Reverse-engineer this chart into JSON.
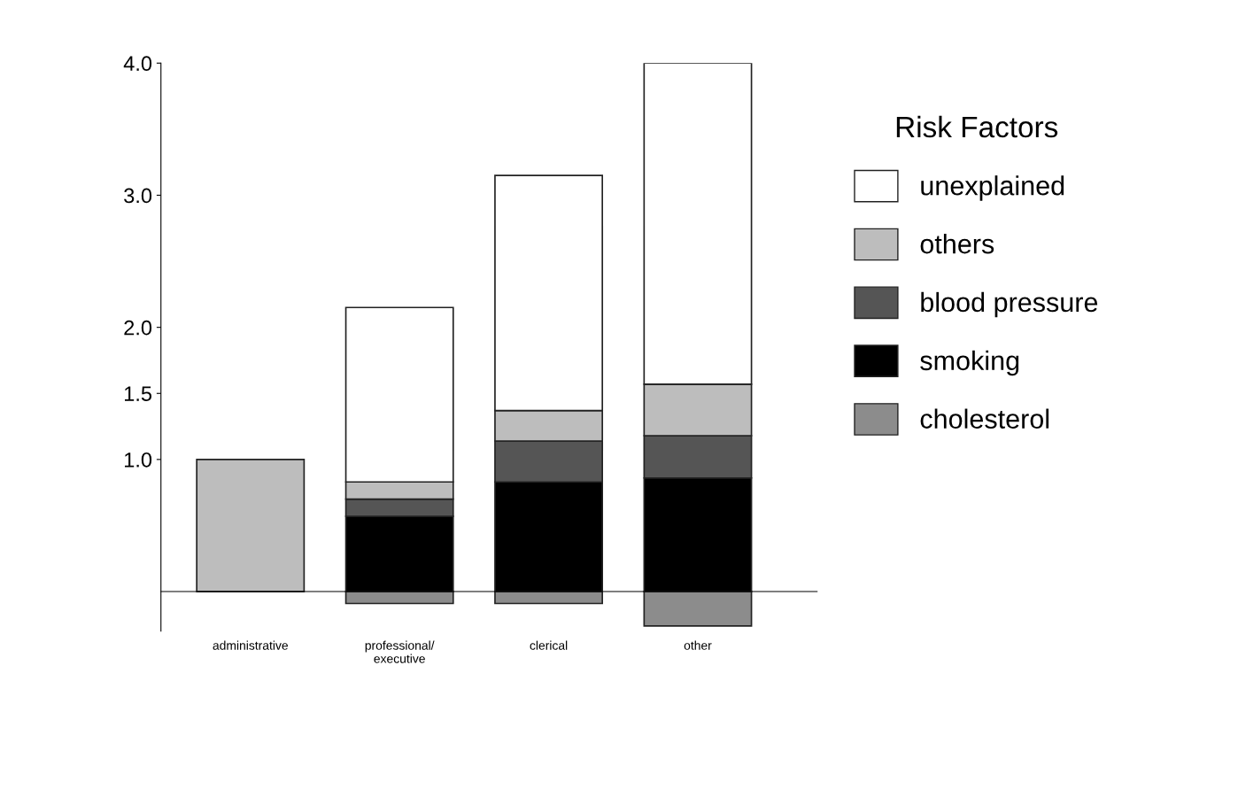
{
  "chart_data": {
    "type": "bar",
    "stacked": true,
    "categories": [
      "administrative",
      "professional/\nexecutive",
      "clerical",
      "other"
    ],
    "series": [
      {
        "name": "cholesterol",
        "color": "#8c8c8c",
        "values": [
          0,
          -0.09,
          -0.09,
          -0.26
        ]
      },
      {
        "name": "smoking",
        "color": "#000000",
        "values": [
          0,
          0.57,
          0.83,
          0.86
        ]
      },
      {
        "name": "blood pressure",
        "color": "#555555",
        "values": [
          0,
          0.13,
          0.31,
          0.32
        ]
      },
      {
        "name": "others",
        "color": "#bdbdbd",
        "values": [
          1.0,
          0.13,
          0.23,
          0.39
        ]
      },
      {
        "name": "unexplained",
        "color": "#ffffff",
        "values": [
          0,
          1.32,
          1.78,
          2.43
        ]
      }
    ],
    "legend_title": "Risk Factors",
    "legend": "right",
    "ylim": [
      -0.3,
      4.0
    ],
    "yticks": [
      {
        "value": 1,
        "label": "1.0"
      },
      {
        "value": 1.5,
        "label": "1.5"
      },
      {
        "value": 2,
        "label": "2.0"
      },
      {
        "value": 3,
        "label": "3.0"
      },
      {
        "value": 4,
        "label": "4.0"
      }
    ],
    "grid": false
  }
}
